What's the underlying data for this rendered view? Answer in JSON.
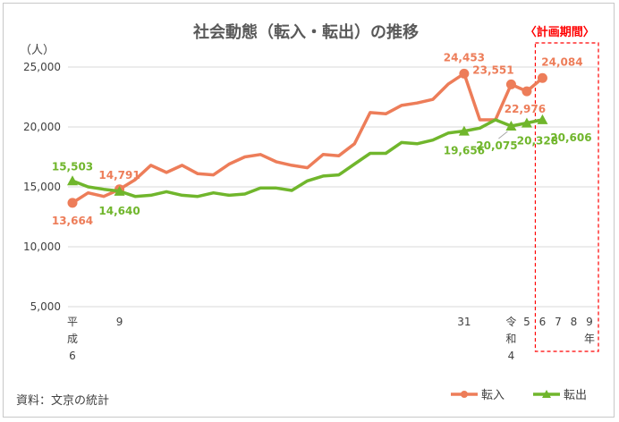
{
  "chart_data": {
    "type": "line",
    "title": "社会動態（転入・転出）の推移",
    "ylabel": "（人）",
    "ylim": [
      5000,
      25000
    ],
    "yticks": [
      "5,000",
      "10,000",
      "15,000",
      "20,000",
      "25,000"
    ],
    "grid": true,
    "legend": "bottom-right",
    "x": [
      "H6",
      "H7",
      "H8",
      "H9",
      "H10",
      "H11",
      "H12",
      "H13",
      "H14",
      "H15",
      "H16",
      "H17",
      "H18",
      "H19",
      "H20",
      "H21",
      "H22",
      "H23",
      "H24",
      "H25",
      "H26",
      "H27",
      "H28",
      "H29",
      "H30",
      "H31",
      "R2",
      "R3",
      "R4",
      "R5",
      "R6",
      "R7",
      "R8",
      "R9"
    ],
    "x_tick_labels": [
      {
        "key": "h6",
        "lines": [
          "平",
          "成",
          "6"
        ],
        "x": "H6"
      },
      {
        "key": "h9",
        "lines": [
          "9"
        ],
        "x": "H9"
      },
      {
        "key": "h31",
        "lines": [
          "31"
        ],
        "x": "H31"
      },
      {
        "key": "r4",
        "lines": [
          "令",
          "和",
          "4"
        ],
        "x": "R4"
      },
      {
        "key": "r5",
        "lines": [
          "5"
        ],
        "x": "R5"
      },
      {
        "key": "r6",
        "lines": [
          "6"
        ],
        "x": "R6"
      },
      {
        "key": "r7",
        "lines": [
          "7"
        ],
        "x": "R7"
      },
      {
        "key": "r8",
        "lines": [
          "8"
        ],
        "x": "R8"
      },
      {
        "key": "r9",
        "lines": [
          "9",
          "年"
        ],
        "x": "R9"
      }
    ],
    "series": [
      {
        "name": "転入",
        "color": "#ed7d59",
        "x": [
          "H6",
          "H7",
          "H8",
          "H9",
          "H10",
          "H11",
          "H12",
          "H13",
          "H14",
          "H15",
          "H16",
          "H17",
          "H18",
          "H19",
          "H20",
          "H21",
          "H22",
          "H23",
          "H24",
          "H25",
          "H26",
          "H27",
          "H28",
          "H29",
          "H30",
          "H31",
          "R2",
          "R3",
          "R4",
          "R5",
          "R6"
        ],
        "values": [
          13664,
          14500,
          14200,
          14791,
          15600,
          16800,
          16200,
          16800,
          16100,
          16000,
          16900,
          17500,
          17700,
          17100,
          16800,
          16600,
          17700,
          17600,
          18600,
          21200,
          21100,
          21800,
          22000,
          22300,
          23600,
          24453,
          20600,
          20600,
          23551,
          22976,
          24084
        ],
        "markers": [
          {
            "x": "H6",
            "value": 13664,
            "label": "13,664",
            "shape": "circle"
          },
          {
            "x": "H9",
            "value": 14791,
            "label": "14,791",
            "shape": "circle"
          },
          {
            "x": "H31",
            "value": 24453,
            "label": "24,453",
            "shape": "circle"
          },
          {
            "x": "R4",
            "value": 23551,
            "label": "23,551",
            "shape": "circle"
          },
          {
            "x": "R5",
            "value": 22976,
            "label": "22,976",
            "shape": "circle"
          },
          {
            "x": "R6",
            "value": 24084,
            "label": "24,084",
            "shape": "circle"
          }
        ]
      },
      {
        "name": "転出",
        "color": "#70b62c",
        "x": [
          "H6",
          "H7",
          "H8",
          "H9",
          "H10",
          "H11",
          "H12",
          "H13",
          "H14",
          "H15",
          "H16",
          "H17",
          "H18",
          "H19",
          "H20",
          "H21",
          "H22",
          "H23",
          "H24",
          "H25",
          "H26",
          "H27",
          "H28",
          "H29",
          "H30",
          "H31",
          "R2",
          "R3",
          "R4",
          "R5",
          "R6"
        ],
        "values": [
          15503,
          15000,
          14800,
          14640,
          14200,
          14300,
          14600,
          14300,
          14200,
          14500,
          14300,
          14400,
          14900,
          14900,
          14700,
          15500,
          15900,
          16000,
          16900,
          17800,
          17800,
          18700,
          18600,
          18900,
          19500,
          19656,
          19900,
          20600,
          20075,
          20328,
          20606
        ],
        "markers": [
          {
            "x": "H6",
            "value": 15503,
            "label": "15,503",
            "shape": "triangle"
          },
          {
            "x": "H9",
            "value": 14640,
            "label": "14,640",
            "shape": "triangle"
          },
          {
            "x": "H31",
            "value": 19656,
            "label": "19,656",
            "shape": "triangle"
          },
          {
            "x": "R4",
            "value": 20075,
            "label": "20,075",
            "shape": "triangle"
          },
          {
            "x": "R5",
            "value": 20328,
            "label": "20,328",
            "shape": "triangle"
          },
          {
            "x": "R6",
            "value": 20606,
            "label": "20,606",
            "shape": "triangle"
          }
        ]
      }
    ],
    "annotations": [
      {
        "key": "plan_period",
        "text": "〈計画期間〉",
        "color": "#ff0000",
        "x_from": "R6",
        "x_to": "R9",
        "style": "dashed-box"
      }
    ],
    "source": "資料：文京の統計"
  }
}
